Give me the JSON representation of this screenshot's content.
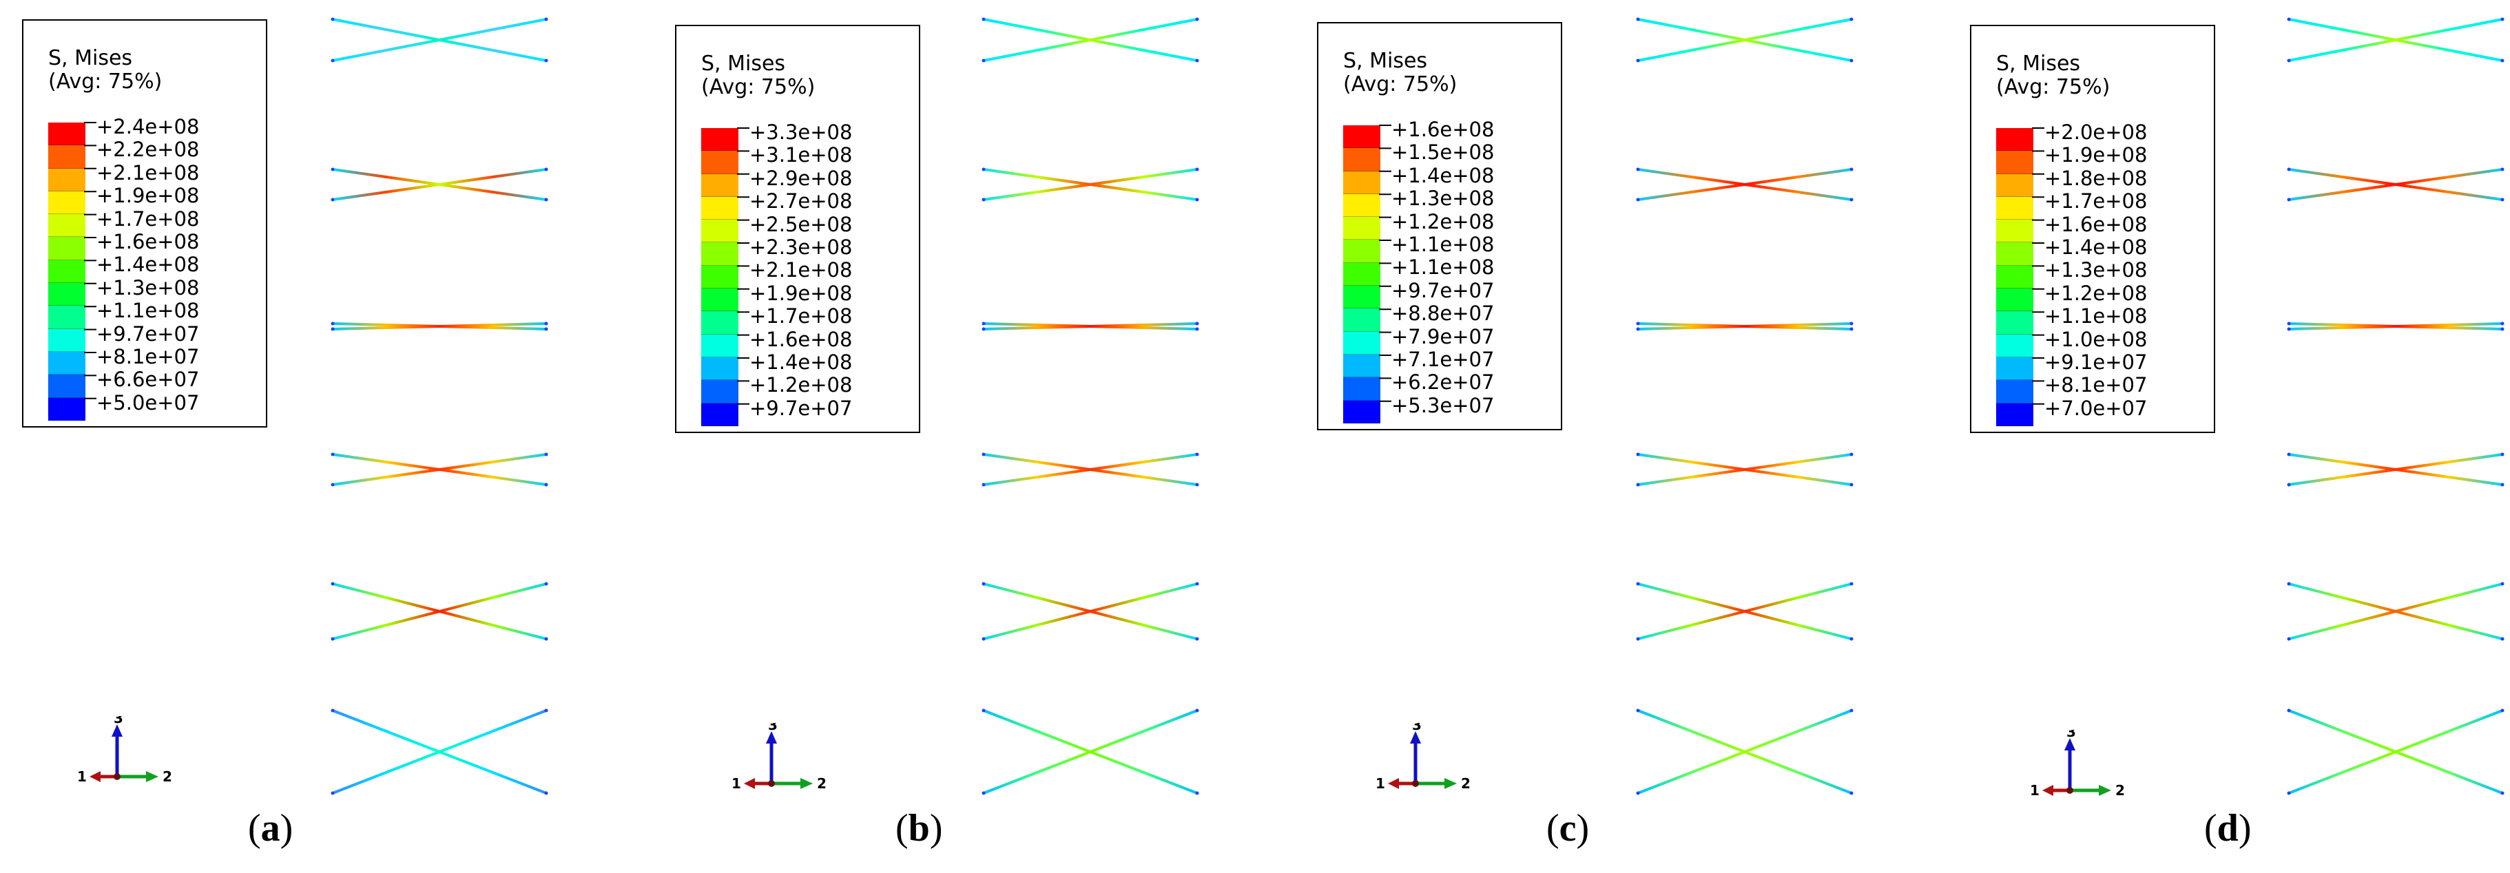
{
  "legend_colors": [
    "#ff0000",
    "#ff5e00",
    "#ffae00",
    "#ffee00",
    "#d4ff00",
    "#8cff00",
    "#3dff00",
    "#00ff2e",
    "#00ff8f",
    "#00ffe1",
    "#00b9ff",
    "#0062ff",
    "#0000ff"
  ],
  "panels": [
    {
      "id": "a",
      "label_letter": "a",
      "legend_title": "S, Mises",
      "legend_subtitle": "(Avg: 75%)",
      "scale_values": [
        "+2.4e+08",
        "+2.2e+08",
        "+2.1e+08",
        "+1.9e+08",
        "+1.7e+08",
        "+1.6e+08",
        "+1.4e+08",
        "+1.3e+08",
        "+1.1e+08",
        "+9.7e+07",
        "+8.1e+07",
        "+6.6e+07",
        "+5.0e+07"
      ],
      "triad_labels": {
        "axis1": "1",
        "axis2": "2",
        "axis3": "3"
      },
      "braces": [
        {
          "level": 1,
          "colors": [
            "#00f5c8",
            "#3ad5ff",
            "#00e8ff"
          ]
        },
        {
          "level": 2,
          "colors": [
            "#c8ff00",
            "#ff4000",
            "#00e0ff"
          ]
        },
        {
          "level": 3,
          "colors": [
            "#ff2000",
            "#ffc000",
            "#00c8ff"
          ]
        },
        {
          "level": 4,
          "colors": [
            "#ff3000",
            "#ffd000",
            "#00d0ff"
          ]
        },
        {
          "level": 5,
          "colors": [
            "#ff2000",
            "#a0ff00",
            "#00d8ff"
          ]
        },
        {
          "level": 6,
          "colors": [
            "#00ffd0",
            "#00e0ff",
            "#3090ff"
          ]
        }
      ]
    },
    {
      "id": "b",
      "label_letter": "b",
      "legend_title": "S, Mises",
      "legend_subtitle": "(Avg: 75%)",
      "scale_values": [
        "+3.3e+08",
        "+3.1e+08",
        "+2.9e+08",
        "+2.7e+08",
        "+2.5e+08",
        "+2.3e+08",
        "+2.1e+08",
        "+1.9e+08",
        "+1.7e+08",
        "+1.6e+08",
        "+1.4e+08",
        "+1.2e+08",
        "+9.7e+07"
      ],
      "triad_labels": {
        "axis1": "1",
        "axis2": "2",
        "axis3": "3"
      },
      "braces": [
        {
          "level": 1,
          "colors": [
            "#b0ff00",
            "#00ffd0",
            "#00e8ff"
          ]
        },
        {
          "level": 2,
          "colors": [
            "#ff5000",
            "#c0ff00",
            "#00e0ff"
          ]
        },
        {
          "level": 3,
          "colors": [
            "#ff1000",
            "#ffb000",
            "#00c8ff"
          ]
        },
        {
          "level": 4,
          "colors": [
            "#ff3000",
            "#ffd000",
            "#00d0ff"
          ]
        },
        {
          "level": 5,
          "colors": [
            "#ff3000",
            "#a0ff00",
            "#00d8ff"
          ]
        },
        {
          "level": 6,
          "colors": [
            "#80ff00",
            "#40ff80",
            "#00c0ff"
          ]
        }
      ]
    },
    {
      "id": "c",
      "label_letter": "c",
      "legend_title": "S, Mises",
      "legend_subtitle": "(Avg: 75%)",
      "scale_values": [
        "+1.6e+08",
        "+1.5e+08",
        "+1.4e+08",
        "+1.3e+08",
        "+1.2e+08",
        "+1.1e+08",
        "+1.1e+08",
        "+9.7e+07",
        "+8.8e+07",
        "+7.9e+07",
        "+7.1e+07",
        "+6.2e+07",
        "+5.3e+07"
      ],
      "triad_labels": {
        "axis1": "1",
        "axis2": "2",
        "axis3": "3"
      },
      "braces": [
        {
          "level": 1,
          "colors": [
            "#b0ff00",
            "#00ffd0",
            "#00e8ff"
          ]
        },
        {
          "level": 2,
          "colors": [
            "#ff1000",
            "#ff8000",
            "#00d0ff"
          ]
        },
        {
          "level": 3,
          "colors": [
            "#ff1000",
            "#ffc000",
            "#00c8ff"
          ]
        },
        {
          "level": 4,
          "colors": [
            "#ff3000",
            "#ffd000",
            "#00d0ff"
          ]
        },
        {
          "level": 5,
          "colors": [
            "#ff3000",
            "#a0ff00",
            "#00d8ff"
          ]
        },
        {
          "level": 6,
          "colors": [
            "#a0ff00",
            "#60ff60",
            "#00c0ff"
          ]
        }
      ]
    },
    {
      "id": "d",
      "label_letter": "d",
      "legend_title": "S, Mises",
      "legend_subtitle": "(Avg: 75%)",
      "scale_values": [
        "+2.0e+08",
        "+1.9e+08",
        "+1.8e+08",
        "+1.7e+08",
        "+1.6e+08",
        "+1.4e+08",
        "+1.3e+08",
        "+1.2e+08",
        "+1.1e+08",
        "+1.0e+08",
        "+9.1e+07",
        "+8.1e+07",
        "+7.0e+07"
      ],
      "triad_labels": {
        "axis1": "1",
        "axis2": "2",
        "axis3": "3"
      },
      "braces": [
        {
          "level": 1,
          "colors": [
            "#b0ff00",
            "#00ffd0",
            "#00e8ff"
          ]
        },
        {
          "level": 2,
          "colors": [
            "#ff1000",
            "#ff8000",
            "#00d0ff"
          ]
        },
        {
          "level": 3,
          "colors": [
            "#ff1000",
            "#ffc000",
            "#00c8ff"
          ]
        },
        {
          "level": 4,
          "colors": [
            "#ff3000",
            "#ffd000",
            "#00d0ff"
          ]
        },
        {
          "level": 5,
          "colors": [
            "#ff6000",
            "#a0ff00",
            "#00d8ff"
          ]
        },
        {
          "level": 6,
          "colors": [
            "#90ff00",
            "#60ff60",
            "#00c0ff"
          ]
        }
      ]
    }
  ]
}
